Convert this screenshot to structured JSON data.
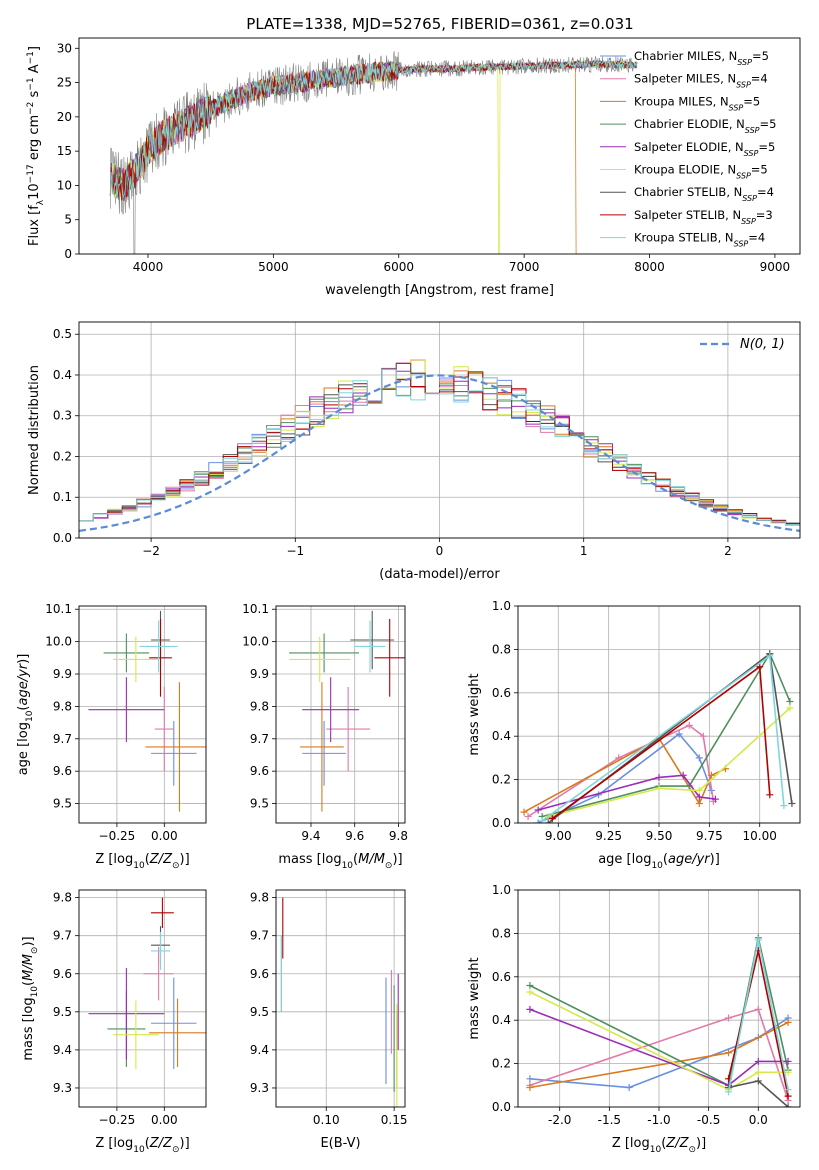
{
  "figure": {
    "title": "PLATE=1338, MJD=52765, FIBERID=0361, z=0.031"
  },
  "models": [
    {
      "name": "Chabrier MILES, N",
      "sub": "SSP",
      "n": "=5",
      "color": "#6b8fe0"
    },
    {
      "name": "Salpeter MILES, N",
      "sub": "SSP",
      "n": "=4",
      "color": "#e07aaa"
    },
    {
      "name": "Kroupa MILES, N",
      "sub": "SSP",
      "n": "=5",
      "color": "#d97a1e"
    },
    {
      "name": "Chabrier ELODIE, N",
      "sub": "SSP",
      "n": "=5",
      "color": "#4e8f5e"
    },
    {
      "name": "Salpeter ELODIE, N",
      "sub": "SSP",
      "n": "=5",
      "color": "#9b2bb8"
    },
    {
      "name": "Kroupa ELODIE, N",
      "sub": "SSP",
      "n": "=5",
      "color": "#d6e84a"
    },
    {
      "name": "Chabrier STELIB, N",
      "sub": "SSP",
      "n": "=4",
      "color": "#555555"
    },
    {
      "name": "Salpeter STELIB, N",
      "sub": "SSP",
      "n": "=3",
      "color": "#b00000"
    },
    {
      "name": "Kroupa STELIB, N",
      "sub": "SSP",
      "n": "=4",
      "color": "#7fd6dc"
    }
  ],
  "chart_data": [
    {
      "id": "spectrum",
      "type": "line",
      "xlabel": "wavelength [Angstrom, rest frame]",
      "ylabel_parts": [
        "Flux [f",
        "λ",
        "10",
        "−17",
        " erg cm",
        "−2",
        " s",
        "−1",
        " A",
        "−1",
        "]"
      ],
      "xlim": [
        3450,
        9200
      ],
      "ylim": [
        0,
        31.5
      ],
      "xticks": [
        4000,
        5000,
        6000,
        7000,
        8000,
        9000
      ],
      "yticks": [
        0,
        5,
        10,
        15,
        20,
        25,
        30
      ],
      "data_envelope": {
        "x": [
          3700,
          3800,
          3900,
          4000,
          4100,
          4200,
          4300,
          4400,
          4500,
          4600,
          4800,
          5000,
          5200,
          5400,
          5600,
          5800,
          6000,
          6200,
          6400,
          6600,
          6800,
          7000,
          7200,
          7400,
          7600,
          7900
        ],
        "y": [
          11,
          10,
          12,
          15,
          17,
          18,
          19,
          20,
          21,
          22,
          23.5,
          24.5,
          25,
          25.5,
          26,
          26.5,
          26.8,
          27,
          27,
          27.2,
          27.3,
          27.4,
          27.5,
          27.6,
          27.7,
          27.5
        ]
      }
    },
    {
      "id": "residuals",
      "type": "histogram",
      "xlabel": "(data-model)/error",
      "ylabel": "Normed distribution",
      "xlim": [
        -2.5,
        2.5
      ],
      "ylim": [
        0,
        0.53
      ],
      "xticks": [
        -2,
        -1,
        0,
        1,
        2
      ],
      "yticks": [
        0.0,
        0.1,
        0.2,
        0.3,
        0.4,
        0.5
      ],
      "reference_label": "N(0, 1)",
      "bin_width": 0.1
    },
    {
      "id": "age_vs_Z",
      "type": "errorbar",
      "xlabel": "Z [log10(Z/Z⊙)]",
      "ylabel": "age  [log10(age/yr)]",
      "xlim": [
        -0.45,
        0.22
      ],
      "ylim": [
        9.44,
        10.11
      ],
      "xticks": [
        -0.25,
        0.0
      ],
      "yticks": [
        9.5,
        9.6,
        9.7,
        9.8,
        9.9,
        10.0,
        10.1
      ],
      "points": [
        {
          "x": 0.05,
          "xe": 0.12,
          "y": 9.655,
          "ye": 0.1
        },
        {
          "x": 0.0,
          "xe": 0.05,
          "y": 9.73,
          "ye": 0.13
        },
        {
          "x": 0.08,
          "xe": 0.18,
          "y": 9.675,
          "ye": 0.2
        },
        {
          "x": -0.2,
          "xe": 0.12,
          "y": 9.965,
          "ye": 0.06
        },
        {
          "x": -0.2,
          "xe": 0.2,
          "y": 9.79,
          "ye": 0.1
        },
        {
          "x": -0.15,
          "xe": 0.12,
          "y": 9.945,
          "ye": 0.07
        },
        {
          "x": -0.02,
          "xe": 0.05,
          "y": 10.005,
          "ye": 0.09
        },
        {
          "x": -0.02,
          "xe": 0.06,
          "y": 9.95,
          "ye": 0.12
        },
        {
          "x": -0.03,
          "xe": 0.1,
          "y": 9.985,
          "ye": 0.08
        }
      ]
    },
    {
      "id": "age_vs_mass",
      "type": "errorbar",
      "xlabel": "mass [log10(M/M⊙)]",
      "ylabel": "",
      "xlim": [
        9.24,
        9.83
      ],
      "ylim": [
        9.44,
        10.11
      ],
      "xticks": [
        9.4,
        9.6,
        9.8
      ],
      "yticks": [
        9.5,
        9.6,
        9.7,
        9.8,
        9.9,
        10.0,
        10.1
      ],
      "points": [
        {
          "x": 9.46,
          "xe": 0.1,
          "y": 9.655,
          "ye": 0.1
        },
        {
          "x": 9.57,
          "xe": 0.1,
          "y": 9.73,
          "ye": 0.13
        },
        {
          "x": 9.45,
          "xe": 0.1,
          "y": 9.675,
          "ye": 0.2
        },
        {
          "x": 9.46,
          "xe": 0.16,
          "y": 9.965,
          "ye": 0.06
        },
        {
          "x": 9.49,
          "xe": 0.13,
          "y": 9.79,
          "ye": 0.1
        },
        {
          "x": 9.44,
          "xe": 0.14,
          "y": 9.945,
          "ye": 0.07
        },
        {
          "x": 9.68,
          "xe": 0.1,
          "y": 10.005,
          "ye": 0.09
        },
        {
          "x": 9.76,
          "xe": 0.07,
          "y": 9.95,
          "ye": 0.12
        },
        {
          "x": 9.67,
          "xe": 0.07,
          "y": 9.985,
          "ye": 0.08
        }
      ]
    },
    {
      "id": "weight_vs_age",
      "type": "line",
      "xlabel": "age  [log10(age/yr)]",
      "ylabel": "mass weight",
      "xlim": [
        8.8,
        10.2
      ],
      "ylim": [
        0,
        1.0
      ],
      "xticks": [
        9.0,
        9.25,
        9.5,
        9.75,
        10.0
      ],
      "yticks": [
        0.0,
        0.2,
        0.4,
        0.6,
        0.8,
        1.0
      ],
      "series": [
        {
          "x": [
            8.9,
            9.2,
            9.6,
            9.7,
            9.76
          ],
          "y": [
            0.0,
            0.13,
            0.41,
            0.3,
            0.15
          ]
        },
        {
          "x": [
            8.85,
            9.3,
            9.65,
            9.72,
            9.77
          ],
          "y": [
            0.03,
            0.3,
            0.45,
            0.4,
            0.1
          ]
        },
        {
          "x": [
            8.83,
            9.5,
            9.7,
            9.76,
            9.83
          ],
          "y": [
            0.05,
            0.39,
            0.09,
            0.22,
            0.25
          ]
        },
        {
          "x": [
            8.92,
            9.5,
            9.65,
            10.05,
            10.15
          ],
          "y": [
            0.03,
            0.17,
            0.17,
            0.78,
            0.56
          ]
        },
        {
          "x": [
            8.9,
            9.5,
            9.62,
            9.7,
            9.78
          ],
          "y": [
            0.06,
            0.21,
            0.22,
            0.12,
            0.11
          ]
        },
        {
          "x": [
            8.95,
            9.5,
            9.7,
            10.15
          ],
          "y": [
            0.03,
            0.16,
            0.15,
            0.53
          ]
        },
        {
          "x": [
            8.95,
            10.05,
            10.16
          ],
          "y": [
            0.0,
            0.78,
            0.09
          ]
        },
        {
          "x": [
            8.97,
            10.0,
            10.05
          ],
          "y": [
            0.02,
            0.72,
            0.13
          ]
        },
        {
          "x": [
            8.92,
            10.05,
            10.12
          ],
          "y": [
            0.01,
            0.77,
            0.08
          ]
        }
      ]
    },
    {
      "id": "mass_vs_Z",
      "type": "errorbar",
      "xlabel": "Z [log10(Z/Z⊙)]",
      "ylabel": "mass [log10(M/M⊙)]",
      "xlim": [
        -0.45,
        0.22
      ],
      "ylim": [
        9.25,
        9.82
      ],
      "xticks": [
        -0.25,
        0.0
      ],
      "yticks": [
        9.3,
        9.4,
        9.5,
        9.6,
        9.7,
        9.8
      ],
      "points": [
        {
          "x": 0.05,
          "xe": 0.12,
          "y": 9.47,
          "ye": 0.12
        },
        {
          "x": -0.03,
          "xe": 0.08,
          "y": 9.6,
          "ye": 0.07
        },
        {
          "x": 0.07,
          "xe": 0.15,
          "y": 9.445,
          "ye": 0.09
        },
        {
          "x": -0.2,
          "xe": 0.1,
          "y": 9.455,
          "ye": 0.1
        },
        {
          "x": -0.2,
          "xe": 0.2,
          "y": 9.495,
          "ye": 0.12
        },
        {
          "x": -0.15,
          "xe": 0.12,
          "y": 9.44,
          "ye": 0.09
        },
        {
          "x": -0.02,
          "xe": 0.05,
          "y": 9.675,
          "ye": 0.05
        },
        {
          "x": -0.01,
          "xe": 0.06,
          "y": 9.76,
          "ye": 0.04
        },
        {
          "x": -0.02,
          "xe": 0.05,
          "y": 9.66,
          "ye": 0.05
        }
      ]
    },
    {
      "id": "mass_vs_ebv",
      "type": "errorbar",
      "xlabel": "E(B-V)",
      "ylabel": "",
      "xlim": [
        0.063,
        0.158
      ],
      "ylim": [
        9.25,
        9.82
      ],
      "xticks": [
        0.1,
        0.15
      ],
      "yticks": [
        9.3,
        9.4,
        9.5,
        9.6,
        9.7,
        9.8
      ],
      "points": [
        {
          "x": 0.144,
          "xe": 0.0,
          "y": 9.45,
          "ye": 0.14
        },
        {
          "x": 0.148,
          "xe": 0.0,
          "y": 9.5,
          "ye": 0.11
        },
        {
          "x": 0.152,
          "xe": 0.0,
          "y": 9.4,
          "ye": 0.1
        },
        {
          "x": 0.15,
          "xe": 0.0,
          "y": 9.43,
          "ye": 0.14
        },
        {
          "x": 0.153,
          "xe": 0.0,
          "y": 9.5,
          "ye": 0.1
        },
        {
          "x": 0.152,
          "xe": 0.0,
          "y": 9.38,
          "ye": 0.14
        },
        {
          "x": 0.067,
          "xe": 0.0,
          "y": 9.6,
          "ye": 0.1
        },
        {
          "x": 0.068,
          "xe": 0.0,
          "y": 9.72,
          "ye": 0.08
        },
        {
          "x": 0.067,
          "xe": 0.0,
          "y": 9.6,
          "ye": 0.1
        }
      ]
    },
    {
      "id": "weight_vs_Z",
      "type": "line",
      "xlabel": "Z [log10(Z/Z⊙)]",
      "ylabel": "mass weight",
      "xlim": [
        -2.42,
        0.42
      ],
      "ylim": [
        0,
        1.0
      ],
      "xticks": [
        -2.0,
        -1.5,
        -1.0,
        -0.5,
        0.0
      ],
      "yticks": [
        0.0,
        0.2,
        0.4,
        0.6,
        0.8,
        1.0
      ],
      "series": [
        {
          "x": [
            -2.3,
            -1.3,
            0.0,
            0.3
          ],
          "y": [
            0.13,
            0.09,
            0.32,
            0.41
          ]
        },
        {
          "x": [
            -2.3,
            -0.3,
            0.0,
            0.3
          ],
          "y": [
            0.1,
            0.41,
            0.45,
            0.03
          ]
        },
        {
          "x": [
            -2.3,
            -0.3,
            0.3
          ],
          "y": [
            0.09,
            0.25,
            0.39
          ]
        },
        {
          "x": [
            -2.3,
            -0.3,
            0.0,
            0.3
          ],
          "y": [
            0.56,
            0.1,
            0.78,
            0.17
          ]
        },
        {
          "x": [
            -2.3,
            -0.3,
            0.0,
            0.3
          ],
          "y": [
            0.45,
            0.1,
            0.21,
            0.21
          ]
        },
        {
          "x": [
            -2.3,
            -0.3,
            0.0,
            0.3
          ],
          "y": [
            0.53,
            0.08,
            0.16,
            0.16
          ]
        },
        {
          "x": [
            -0.3,
            0.0,
            0.3
          ],
          "y": [
            0.09,
            0.12,
            0.0
          ]
        },
        {
          "x": [
            -0.3,
            0.0,
            0.3
          ],
          "y": [
            0.13,
            0.72,
            0.05
          ]
        },
        {
          "x": [
            -0.3,
            0.0,
            0.3
          ],
          "y": [
            0.07,
            0.77,
            0.08
          ]
        }
      ]
    }
  ]
}
